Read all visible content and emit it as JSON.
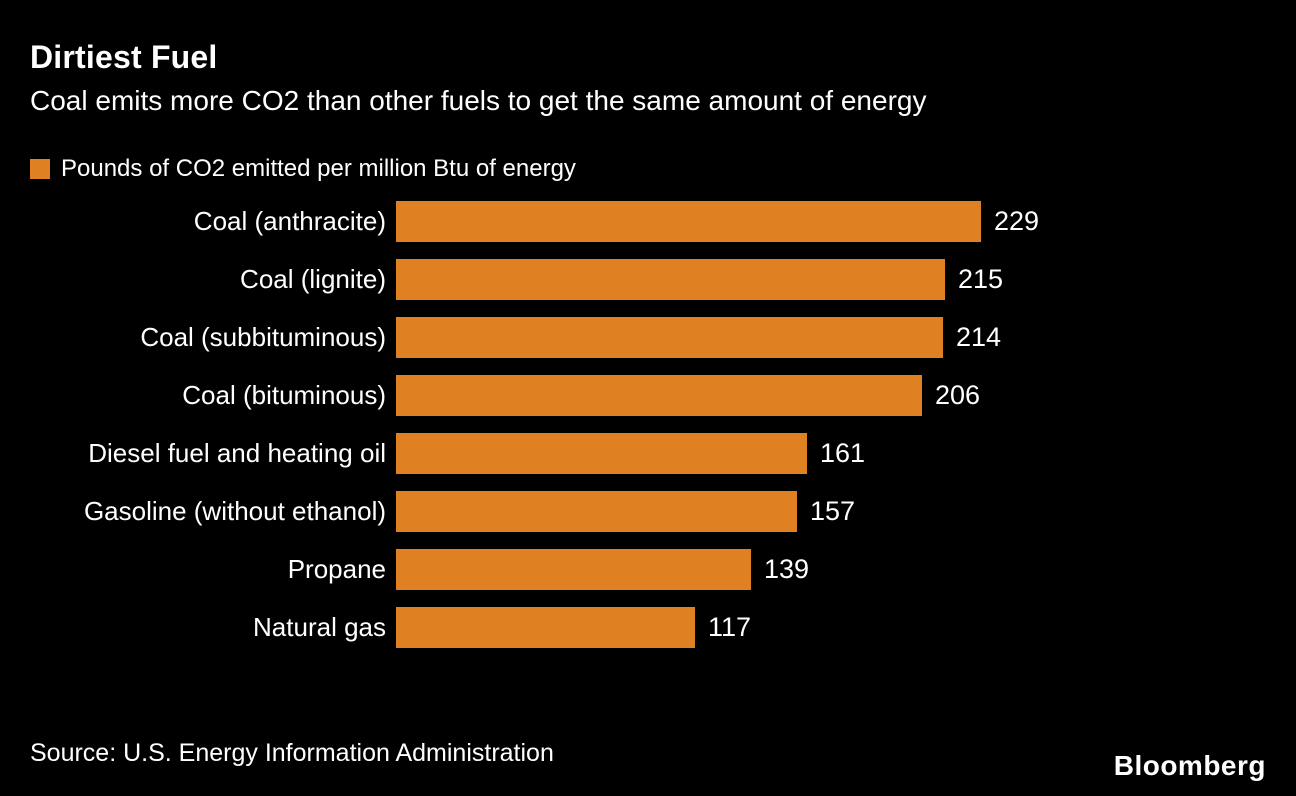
{
  "header": {
    "title": "Dirtiest Fuel",
    "subtitle": "Coal emits more CO2 than other fuels to get the same amount of energy"
  },
  "legend": {
    "label": "Pounds of CO2 emitted per million Btu of energy"
  },
  "footer": {
    "source": "Source: U.S. Energy Information Administration",
    "brand": "Bloomberg"
  },
  "colors": {
    "background": "#000000",
    "text": "#ffffff",
    "bar": "#df8123"
  },
  "chart_data": {
    "type": "bar",
    "orientation": "horizontal",
    "title": "Dirtiest Fuel",
    "subtitle": "Coal emits more CO2 than other fuels to get the same amount of energy",
    "legend_label": "Pounds of CO2 emitted per million Btu of energy",
    "categories": [
      "Coal (anthracite)",
      "Coal (lignite)",
      "Coal (subbituminous)",
      "Coal (bituminous)",
      "Diesel fuel and heating oil",
      "Gasoline (without ethanol)",
      "Propane",
      "Natural gas"
    ],
    "values": [
      229,
      215,
      214,
      206,
      161,
      157,
      139,
      117
    ],
    "xlim": [
      0,
      229
    ],
    "value_labels": true,
    "grid": false,
    "source": "U.S. Energy Information Administration"
  }
}
